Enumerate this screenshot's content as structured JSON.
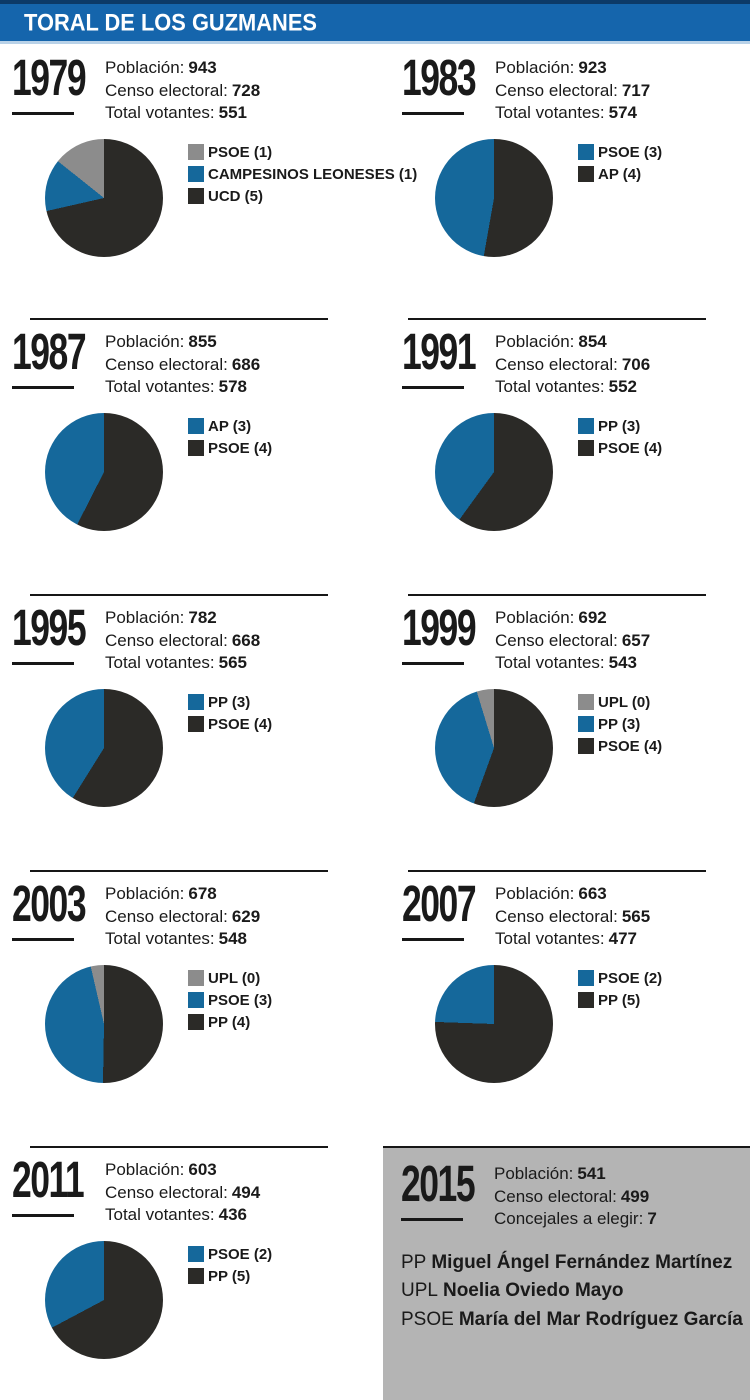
{
  "title": "TORAL DE LOS GUZMANES",
  "palette": {
    "blue": "#15689b",
    "dark": "#2b2a27",
    "gray": "#8c8c8c",
    "header_blue": "#1565ac",
    "header_dark": "#0c3a68",
    "header_light": "#b9d2e8",
    "box_gray": "#b4b4b4"
  },
  "labels": {
    "poblacion": "Población:",
    "censo": "Censo electoral:",
    "votantes": "Total votantes:",
    "concejales": "Concejales a elegir:"
  },
  "chart_data": [
    {
      "type": "pie",
      "year": "1979",
      "stats": {
        "poblacion": 943,
        "censo_electoral": 728,
        "total_votantes": 551
      },
      "slices": [
        {
          "label": "PSOE (1)",
          "party": "PSOE",
          "seats": 1,
          "color": "gray",
          "deg": 51.4
        },
        {
          "label": "CAMPESINOS LEONESES (1)",
          "party": "CAMPESINOS LEONESES",
          "seats": 1,
          "color": "blue",
          "deg": 51.4
        },
        {
          "label": "UCD (5)",
          "party": "UCD",
          "seats": 5,
          "color": "dark",
          "deg": 257.2
        }
      ],
      "legend_position": "right"
    },
    {
      "type": "pie",
      "year": "1983",
      "stats": {
        "poblacion": 923,
        "censo_electoral": 717,
        "total_votantes": 574
      },
      "slices": [
        {
          "label": "PSOE (3)",
          "party": "PSOE",
          "seats": 3,
          "color": "blue",
          "deg": 170
        },
        {
          "label": "AP (4)",
          "party": "AP",
          "seats": 4,
          "color": "dark",
          "deg": 190
        }
      ],
      "legend_position": "right"
    },
    {
      "type": "pie",
      "year": "1987",
      "stats": {
        "poblacion": 855,
        "censo_electoral": 686,
        "total_votantes": 578
      },
      "slices": [
        {
          "label": "AP (3)",
          "party": "AP",
          "seats": 3,
          "color": "blue",
          "deg": 153
        },
        {
          "label": "PSOE (4)",
          "party": "PSOE",
          "seats": 4,
          "color": "dark",
          "deg": 207
        }
      ],
      "legend_position": "right"
    },
    {
      "type": "pie",
      "year": "1991",
      "stats": {
        "poblacion": 854,
        "censo_electoral": 706,
        "total_votantes": 552
      },
      "slices": [
        {
          "label": "PP (3)",
          "party": "PP",
          "seats": 3,
          "color": "blue",
          "deg": 144
        },
        {
          "label": "PSOE (4)",
          "party": "PSOE",
          "seats": 4,
          "color": "dark",
          "deg": 216
        }
      ],
      "legend_position": "right"
    },
    {
      "type": "pie",
      "year": "1995",
      "stats": {
        "poblacion": 782,
        "censo_electoral": 668,
        "total_votantes": 565
      },
      "slices": [
        {
          "label": "PP (3)",
          "party": "PP",
          "seats": 3,
          "color": "blue",
          "deg": 148
        },
        {
          "label": "PSOE (4)",
          "party": "PSOE",
          "seats": 4,
          "color": "dark",
          "deg": 212
        }
      ],
      "legend_position": "right"
    },
    {
      "type": "pie",
      "year": "1999",
      "stats": {
        "poblacion": 692,
        "censo_electoral": 657,
        "total_votantes": 543
      },
      "slices": [
        {
          "label": "UPL (0)",
          "party": "UPL",
          "seats": 0,
          "color": "gray",
          "deg": 17
        },
        {
          "label": "PP (3)",
          "party": "PP",
          "seats": 3,
          "color": "blue",
          "deg": 143
        },
        {
          "label": "PSOE (4)",
          "party": "PSOE",
          "seats": 4,
          "color": "dark",
          "deg": 200
        }
      ],
      "legend_position": "right"
    },
    {
      "type": "pie",
      "year": "2003",
      "stats": {
        "poblacion": 678,
        "censo_electoral": 629,
        "total_votantes": 548
      },
      "slices": [
        {
          "label": "UPL (0)",
          "party": "UPL",
          "seats": 0,
          "color": "gray",
          "deg": 13
        },
        {
          "label": "PSOE (3)",
          "party": "PSOE",
          "seats": 3,
          "color": "blue",
          "deg": 166
        },
        {
          "label": "PP (4)",
          "party": "PP",
          "seats": 4,
          "color": "dark",
          "deg": 181
        }
      ],
      "legend_position": "right"
    },
    {
      "type": "pie",
      "year": "2007",
      "stats": {
        "poblacion": 663,
        "censo_electoral": 565,
        "total_votantes": 477
      },
      "slices": [
        {
          "label": "PSOE (2)",
          "party": "PSOE",
          "seats": 2,
          "color": "blue",
          "deg": 88
        },
        {
          "label": "PP (5)",
          "party": "PP",
          "seats": 5,
          "color": "dark",
          "deg": 272
        }
      ],
      "legend_position": "right"
    },
    {
      "type": "pie",
      "year": "2011",
      "stats": {
        "poblacion": 603,
        "censo_electoral": 494,
        "total_votantes": 436
      },
      "slices": [
        {
          "label": "PSOE (2)",
          "party": "PSOE",
          "seats": 2,
          "color": "blue",
          "deg": 118
        },
        {
          "label": "PP (5)",
          "party": "PP",
          "seats": 5,
          "color": "dark",
          "deg": 242
        }
      ],
      "legend_position": "right"
    }
  ],
  "box2015": {
    "year": "2015",
    "stats": {
      "poblacion": 541,
      "censo_electoral": 499,
      "concejales_a_elegir": 7
    },
    "candidates": [
      {
        "party": "PP",
        "name": "Miguel Ángel Fernández Martínez"
      },
      {
        "party": "UPL",
        "name": "Noelia Oviedo Mayo"
      },
      {
        "party": "PSOE",
        "name": "María del Mar Rodríguez García"
      }
    ]
  }
}
